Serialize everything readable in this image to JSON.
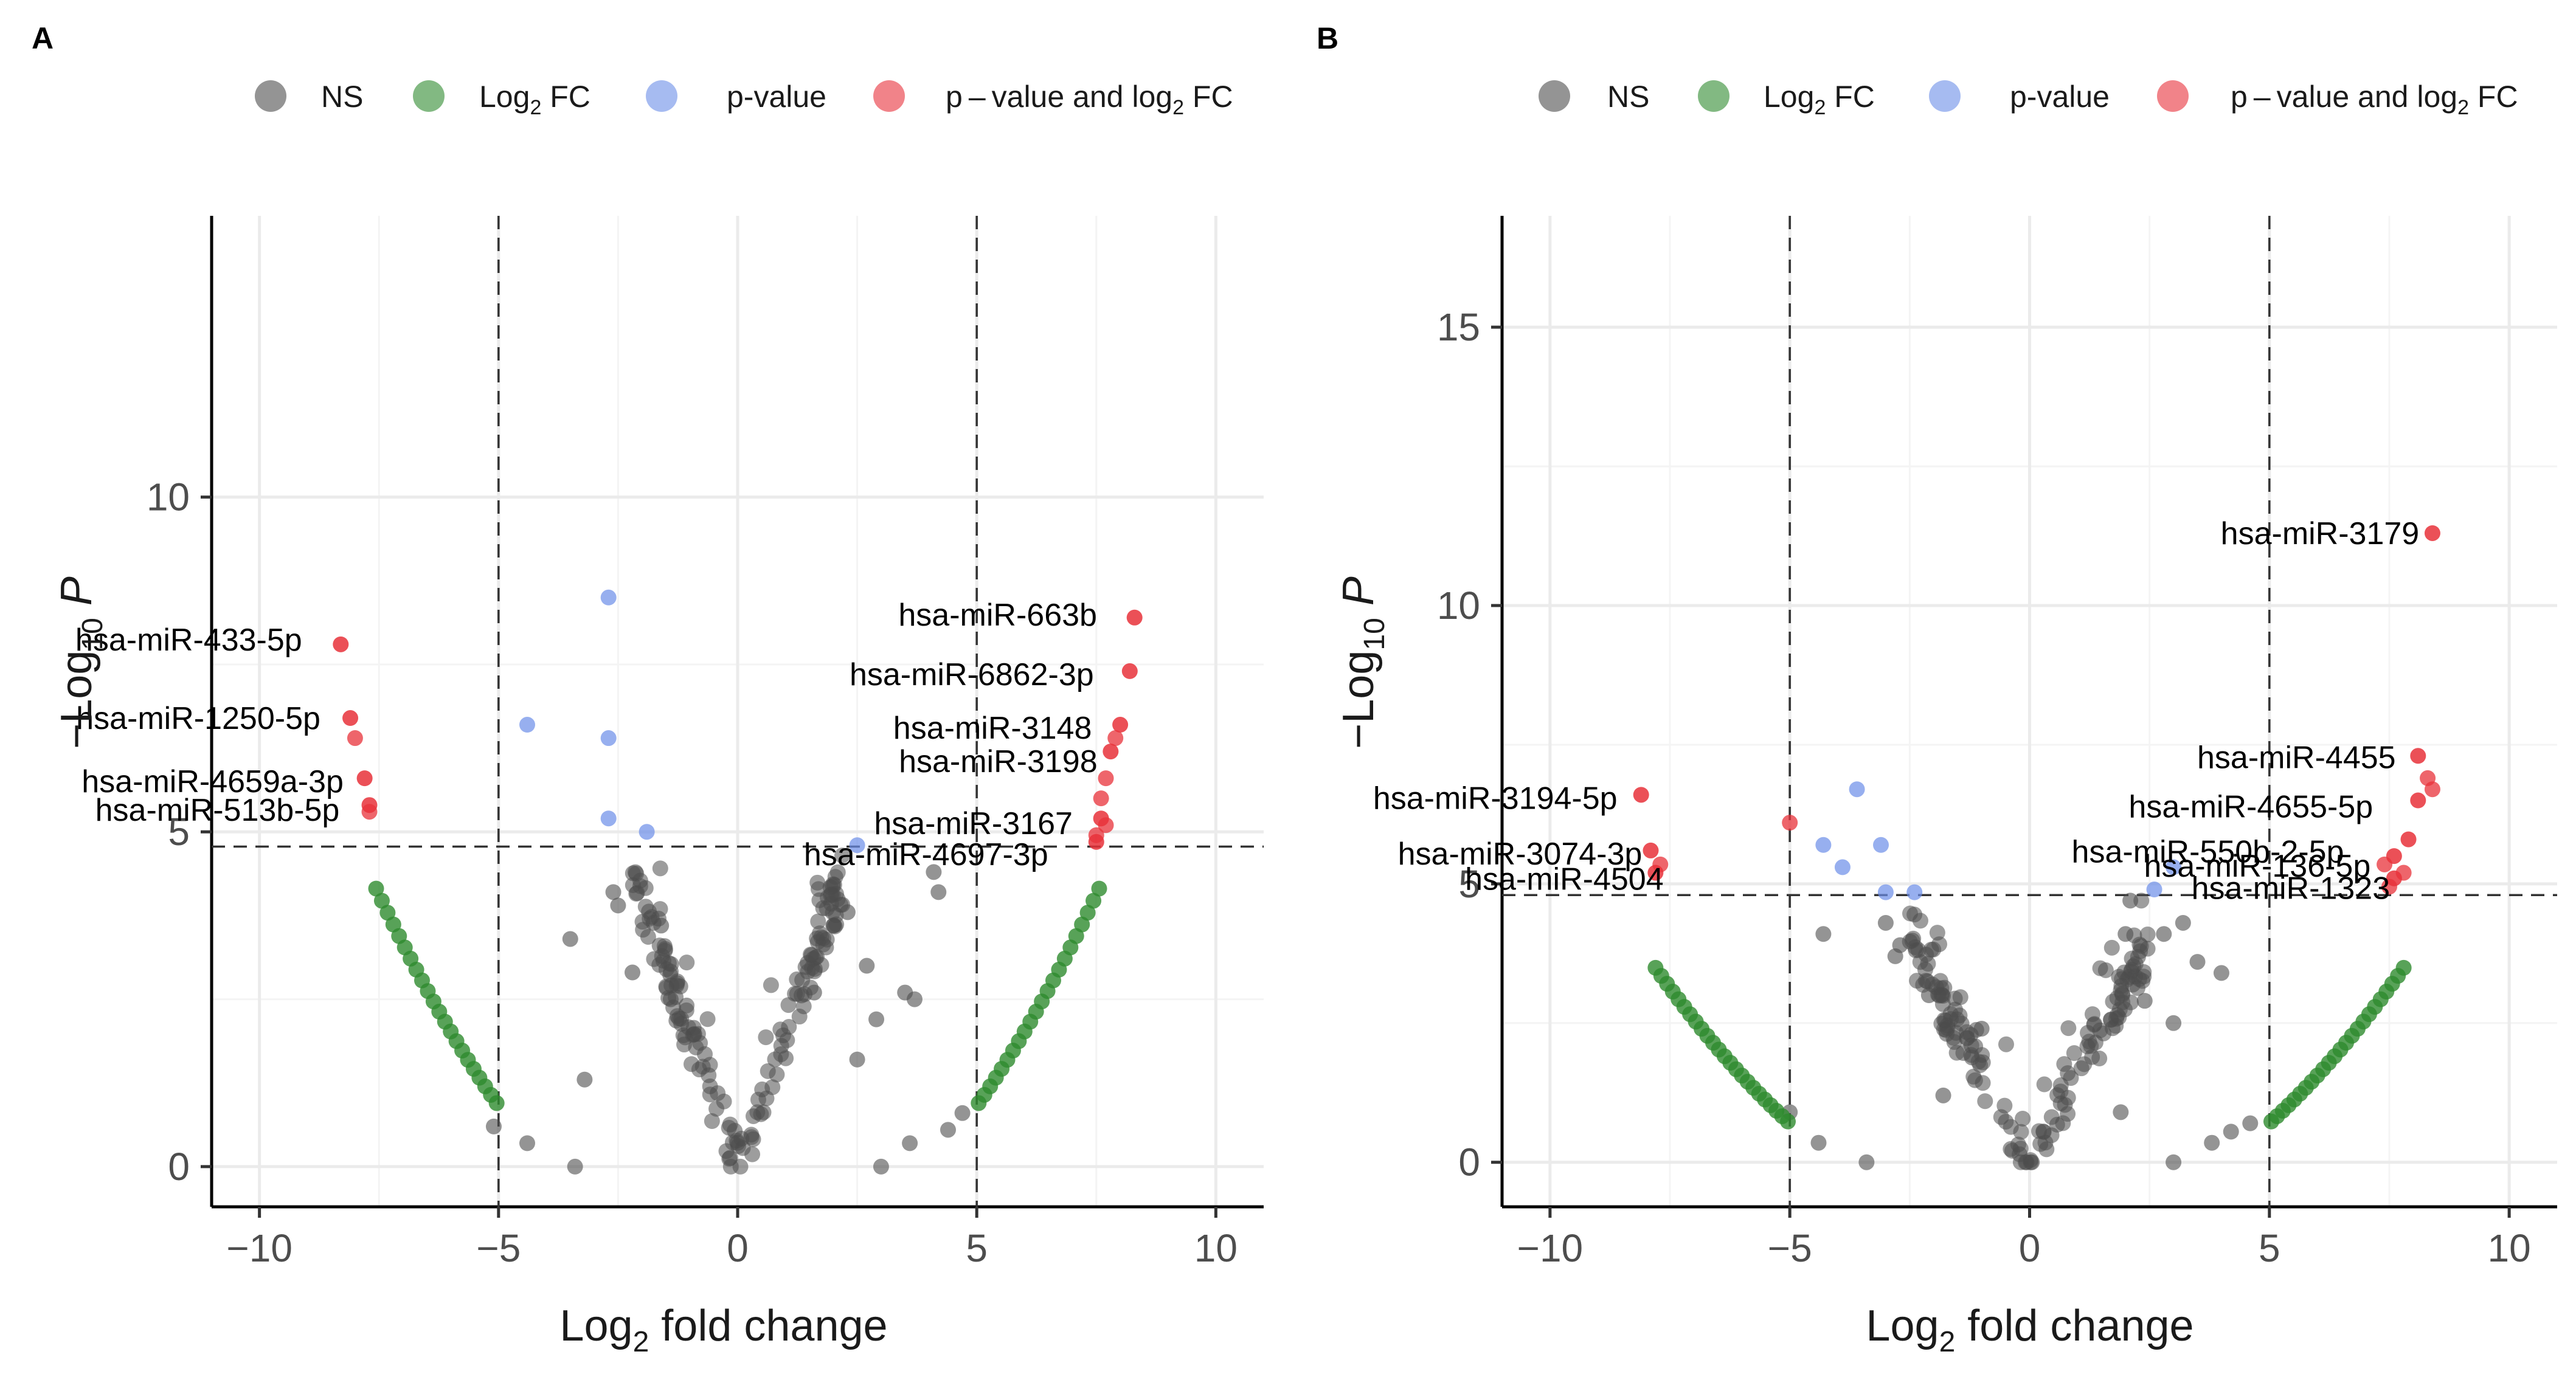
{
  "legend": {
    "items": [
      {
        "key": "NS",
        "label": "NS",
        "color": "#4d4d4d"
      },
      {
        "key": "FC",
        "label": "Log",
        "sub": "2",
        "suffix": " FC",
        "color": "#2e8b2e"
      },
      {
        "key": "P",
        "label": "p-value",
        "color": "#6b8de8"
      },
      {
        "key": "PFC",
        "label": "p – value and log",
        "sub": "2",
        "suffix": " FC",
        "color": "#e8313a"
      }
    ]
  },
  "axis_titles": {
    "x_main": "Log",
    "x_sub": "2",
    "x_rest": " fold change",
    "y_minus": "−",
    "y_main": "Log",
    "y_sub": "10",
    "y_italic": "P"
  },
  "chart_data": [
    {
      "panel": "A",
      "type": "scatter",
      "title": "",
      "xlabel": "Log2 fold change",
      "ylabel": "-Log10 P",
      "xlim": [
        -11,
        11
      ],
      "ylim": [
        -0.6,
        14.2
      ],
      "xticks": [
        -10,
        -5,
        0,
        5,
        10
      ],
      "xtick_labels": [
        "−10",
        "−5",
        "0",
        "5",
        "10"
      ],
      "yticks": [
        0,
        5,
        10
      ],
      "ytick_labels": [
        "0",
        "5",
        "10"
      ],
      "fc_cutoff": 5,
      "p_cutoff": 4.78,
      "fc_curve": {
        "a": 0.1009,
        "from": 5.04
      },
      "labeled": [
        {
          "label": "hsa-miR-433-5p",
          "x": -8.3,
          "y": 7.8
        },
        {
          "label": "hsa-miR-1250-5p",
          "x": -8.1,
          "y": 6.7
        },
        {
          "label": "hsa-miR-4659a-3p",
          "x": -7.8,
          "y": 5.8
        },
        {
          "label": "hsa-miR-513b-5p",
          "x": -7.7,
          "y": 5.4
        },
        {
          "label": "hsa-miR-663b",
          "x": 8.3,
          "y": 8.2
        },
        {
          "label": "hsa-miR-6862-3p",
          "x": 8.2,
          "y": 7.4
        },
        {
          "label": "hsa-miR-3148",
          "x": 8.0,
          "y": 6.6
        },
        {
          "label": "hsa-miR-3198",
          "x": 7.8,
          "y": 6.2
        },
        {
          "label": "hsa-miR-3167",
          "x": 7.6,
          "y": 5.2
        },
        {
          "label": "hsa-miR-4697-3p",
          "x": 7.5,
          "y": 4.85
        }
      ],
      "extra_red": [
        {
          "x": -8.0,
          "y": 6.4
        },
        {
          "x": -7.7,
          "y": 5.3
        },
        {
          "x": 7.9,
          "y": 6.4
        },
        {
          "x": 7.7,
          "y": 5.8
        },
        {
          "x": 7.6,
          "y": 5.5
        },
        {
          "x": 7.7,
          "y": 5.1
        },
        {
          "x": 7.5,
          "y": 4.95
        }
      ],
      "blue": [
        {
          "x": -2.7,
          "y": 8.5
        },
        {
          "x": -4.4,
          "y": 6.6
        },
        {
          "x": -2.7,
          "y": 6.4
        },
        {
          "x": -2.7,
          "y": 5.2
        },
        {
          "x": -1.9,
          "y": 5.0
        },
        {
          "x": 2.5,
          "y": 4.8
        }
      ],
      "ns": [
        {
          "x": -5.1,
          "y": 0.6
        },
        {
          "x": -4.4,
          "y": 0.35
        },
        {
          "x": -3.4,
          "y": 0.0
        },
        {
          "x": 3.0,
          "y": 0.0
        },
        {
          "x": 3.6,
          "y": 0.35
        },
        {
          "x": 4.4,
          "y": 0.55
        },
        {
          "x": 4.7,
          "y": 0.8
        },
        {
          "x": -3.2,
          "y": 1.3
        },
        {
          "x": -3.5,
          "y": 3.4
        },
        {
          "x": -2.6,
          "y": 4.1
        },
        {
          "x": -2.5,
          "y": 3.9
        },
        {
          "x": 4.1,
          "y": 4.4
        },
        {
          "x": 4.2,
          "y": 4.1
        },
        {
          "x": 3.5,
          "y": 2.6
        },
        {
          "x": 3.7,
          "y": 2.5
        },
        {
          "x": 2.3,
          "y": 3.8
        },
        {
          "x": 2.0,
          "y": 3.6
        },
        {
          "x": 2.7,
          "y": 3.0
        },
        {
          "x": -1.6,
          "y": 3.6
        },
        {
          "x": -1.4,
          "y": 2.5
        },
        {
          "x": 1.6,
          "y": 2.6
        },
        {
          "x": 2.5,
          "y": 1.6
        },
        {
          "x": -2.2,
          "y": 2.9
        },
        {
          "x": 2.9,
          "y": 2.2
        }
      ],
      "ns_v": {
        "n": 170,
        "k": 1.95,
        "xmax": 2.2,
        "spread": 0.42
      },
      "green_n": 22
    },
    {
      "panel": "B",
      "type": "scatter",
      "title": "",
      "xlabel": "Log2 fold change",
      "ylabel": "-Log10 P",
      "xlim": [
        -11,
        11
      ],
      "ylim": [
        -0.8,
        17.0
      ],
      "xticks": [
        -10,
        -5,
        0,
        5,
        10
      ],
      "xtick_labels": [
        "−10",
        "−5",
        "0",
        "5",
        "10"
      ],
      "yticks": [
        0,
        5,
        10,
        15
      ],
      "ytick_labels": [
        "0",
        "5",
        "10",
        "15"
      ],
      "fc_cutoff": 5,
      "p_cutoff": 4.8,
      "fc_curve": {
        "a": 0.0779,
        "from": 5.04
      },
      "labeled": [
        {
          "label": "hsa-miR-3179",
          "x": 8.4,
          "y": 11.3
        },
        {
          "label": "hsa-miR-3194-5p",
          "x": -8.1,
          "y": 6.6
        },
        {
          "label": "hsa-miR-3074-3p",
          "x": -7.9,
          "y": 5.6
        },
        {
          "label": "hsa-miR-4504",
          "x": -7.8,
          "y": 5.2
        },
        {
          "label": "hsa-miR-4455",
          "x": 8.1,
          "y": 7.3
        },
        {
          "label": "hsa-miR-4655-5p",
          "x": 8.1,
          "y": 6.5
        },
        {
          "label": "hsa-miR-550b-2-5p",
          "x": 7.9,
          "y": 5.8
        },
        {
          "label": "hsa-miR-136-5p",
          "x": 7.6,
          "y": 5.5
        },
        {
          "label": "hsa-miR-1323",
          "x": 7.6,
          "y": 5.1
        }
      ],
      "extra_red": [
        {
          "x": -5.0,
          "y": 6.1
        },
        {
          "x": 8.3,
          "y": 6.9
        },
        {
          "x": 8.4,
          "y": 6.7
        },
        {
          "x": 7.8,
          "y": 5.2
        },
        {
          "x": 7.5,
          "y": 4.95
        },
        {
          "x": 7.4,
          "y": 5.35
        },
        {
          "x": -7.7,
          "y": 5.35
        }
      ],
      "blue": [
        {
          "x": -3.6,
          "y": 6.7
        },
        {
          "x": -4.3,
          "y": 5.7
        },
        {
          "x": -3.1,
          "y": 5.7
        },
        {
          "x": -3.0,
          "y": 4.85
        },
        {
          "x": -3.9,
          "y": 5.3
        },
        {
          "x": -2.4,
          "y": 4.85
        },
        {
          "x": 2.6,
          "y": 4.9
        },
        {
          "x": 3.0,
          "y": 5.3
        }
      ],
      "ns": [
        {
          "x": -5.0,
          "y": 0.9
        },
        {
          "x": -4.4,
          "y": 0.35
        },
        {
          "x": -3.4,
          "y": 0.0
        },
        {
          "x": 3.0,
          "y": 0.0
        },
        {
          "x": 3.8,
          "y": 0.35
        },
        {
          "x": 4.2,
          "y": 0.55
        },
        {
          "x": 4.6,
          "y": 0.7
        },
        {
          "x": -4.3,
          "y": 4.1
        },
        {
          "x": -3.0,
          "y": 4.3
        },
        {
          "x": -2.7,
          "y": 3.9
        },
        {
          "x": -2.8,
          "y": 3.7
        },
        {
          "x": 2.1,
          "y": 4.7
        },
        {
          "x": 2.0,
          "y": 4.1
        },
        {
          "x": 3.2,
          "y": 4.3
        },
        {
          "x": 2.8,
          "y": 4.1
        },
        {
          "x": 3.5,
          "y": 3.6
        },
        {
          "x": 4.0,
          "y": 3.4
        },
        {
          "x": -2.1,
          "y": 3.0
        },
        {
          "x": 2.4,
          "y": 2.9
        },
        {
          "x": -1.0,
          "y": 2.4
        },
        {
          "x": 3.0,
          "y": 2.5
        },
        {
          "x": -1.8,
          "y": 1.2
        },
        {
          "x": 1.9,
          "y": 0.9
        }
      ],
      "ns_v": {
        "n": 170,
        "k": 1.55,
        "xmax": 2.5,
        "spread": 0.4
      },
      "green_n": 24
    }
  ]
}
